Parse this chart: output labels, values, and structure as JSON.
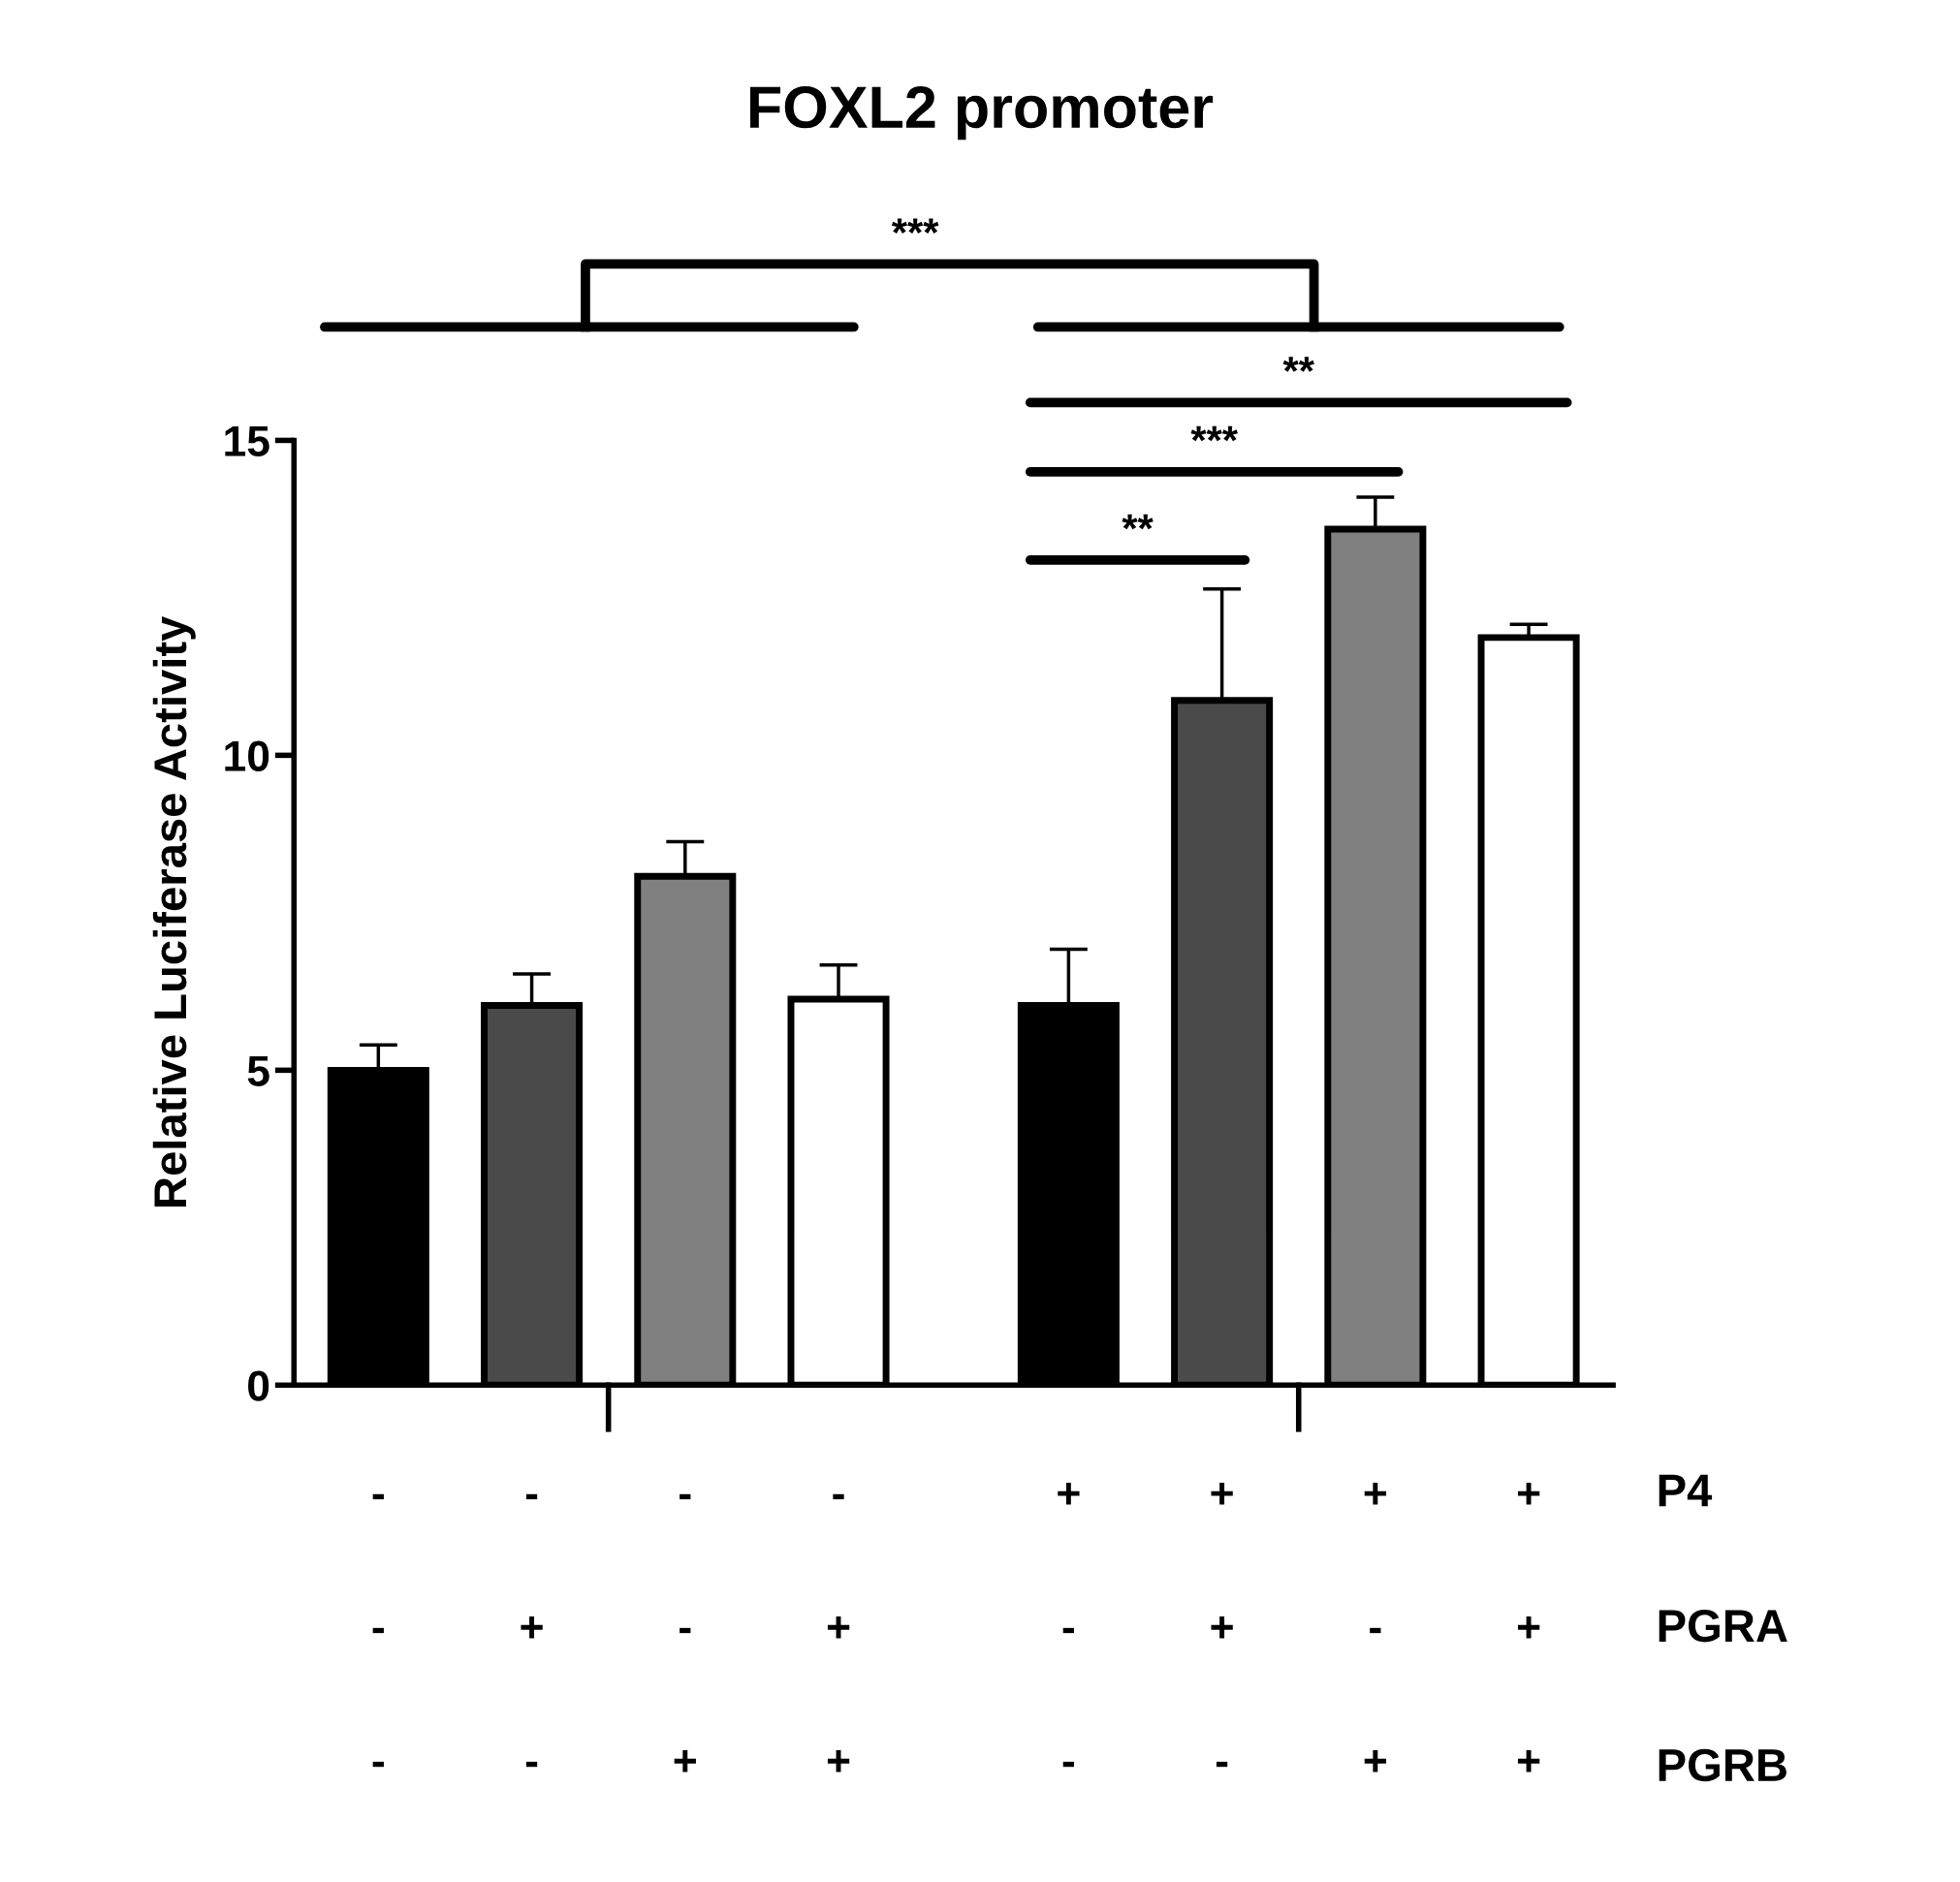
{
  "chart_data": {
    "type": "bar",
    "title": "FOXL2 promoter",
    "ylabel": "Relative Luciferase Activity",
    "categories": [
      "-\n-\n-",
      "-\n+\n-",
      "-\n-\n+",
      "-\n+\n+",
      "+\n-\n-",
      "+\n+\n-",
      "+\n-\n+",
      "+\n+\n+"
    ],
    "values": [
      5.0,
      6.03,
      8.08,
      6.13,
      6.03,
      10.87,
      13.59,
      11.87
    ],
    "errors": [
      0.4,
      0.5,
      0.55,
      0.54,
      0.89,
      1.77,
      0.51,
      0.21
    ],
    "colors": [
      "#000000",
      "#4a4a4a",
      "#808080",
      "#ffffff",
      "#000000",
      "#4a4a4a",
      "#808080",
      "#ffffff"
    ],
    "ylim": [
      0,
      15
    ],
    "yticks": [
      0,
      5,
      10,
      15
    ],
    "grid": false,
    "legend": false,
    "annotations": [
      "***",
      "**",
      "***",
      "**",
      "P4",
      "PGRA",
      "PGRB"
    ]
  }
}
